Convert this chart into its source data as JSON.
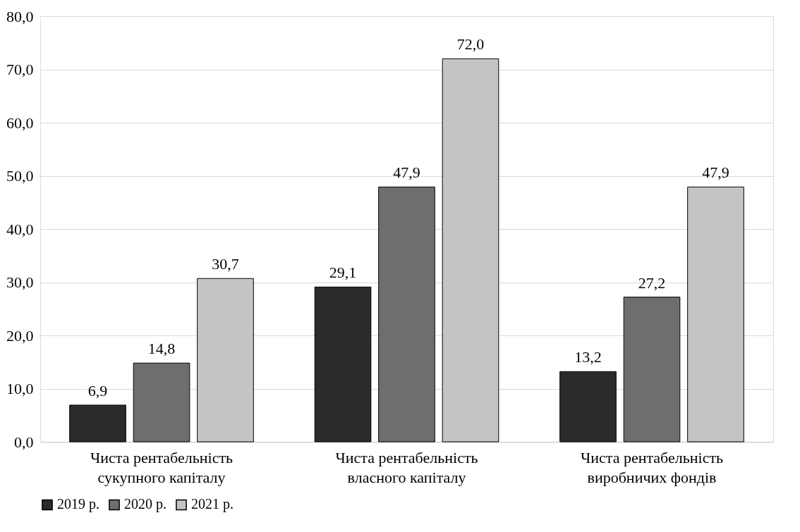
{
  "chart_data": {
    "type": "bar",
    "categories": [
      "Чиста рентабельність\nсукупного капіталу",
      "Чиста рентабельність\nвласного капіталу",
      "Чиста рентабельність\nвиробничих фондів"
    ],
    "series": [
      {
        "name": "2019 р.",
        "color": "#2b2b2b",
        "values": [
          6.9,
          29.1,
          13.2
        ],
        "value_labels": [
          "6,9",
          "29,1",
          "13,2"
        ]
      },
      {
        "name": "2020 р.",
        "color": "#6e6e6e",
        "values": [
          14.8,
          47.9,
          27.2
        ],
        "value_labels": [
          "14,8",
          "47,9",
          "27,2"
        ]
      },
      {
        "name": "2021 р.",
        "color": "#c4c4c4",
        "values": [
          30.7,
          72.0,
          47.9
        ],
        "value_labels": [
          "30,7",
          "72,0",
          "47,9"
        ]
      }
    ],
    "ylim": [
      0,
      80
    ],
    "yticks": [
      {
        "value": 0,
        "label": "0,0"
      },
      {
        "value": 10,
        "label": "10,0"
      },
      {
        "value": 20,
        "label": "20,0"
      },
      {
        "value": 30,
        "label": "30,0"
      },
      {
        "value": 40,
        "label": "40,0"
      },
      {
        "value": 50,
        "label": "50,0"
      },
      {
        "value": 60,
        "label": "60,0"
      },
      {
        "value": 70,
        "label": "70,0"
      },
      {
        "value": 80,
        "label": "80,0"
      }
    ],
    "grid": "y",
    "legend": "bottom"
  }
}
